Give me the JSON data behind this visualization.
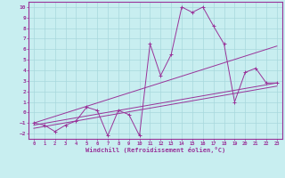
{
  "title": "",
  "xlabel": "Windchill (Refroidissement éolien,°C)",
  "xlim": [
    -0.5,
    23.5
  ],
  "ylim": [
    -2.5,
    10.5
  ],
  "xticks": [
    0,
    1,
    2,
    3,
    4,
    5,
    6,
    7,
    8,
    9,
    10,
    11,
    12,
    13,
    14,
    15,
    16,
    17,
    18,
    19,
    20,
    21,
    22,
    23
  ],
  "yticks": [
    -2,
    -1,
    0,
    1,
    2,
    3,
    4,
    5,
    6,
    7,
    8,
    9,
    10
  ],
  "bg_color": "#c8eef0",
  "grid_color": "#a8d8dc",
  "line_color": "#993399",
  "data_x": [
    0,
    1,
    2,
    3,
    4,
    5,
    6,
    7,
    8,
    9,
    10,
    11,
    12,
    13,
    14,
    15,
    16,
    17,
    18,
    19,
    20,
    21,
    22,
    23
  ],
  "data_y": [
    -1.0,
    -1.2,
    -1.8,
    -1.2,
    -0.8,
    0.5,
    0.2,
    -2.2,
    0.2,
    -0.2,
    -2.2,
    6.5,
    3.5,
    5.5,
    10.0,
    9.5,
    10.0,
    8.2,
    6.5,
    1.0,
    3.8,
    4.2,
    2.8,
    2.8
  ],
  "trend1_x": [
    0,
    23
  ],
  "trend1_y": [
    -1.2,
    2.8
  ],
  "trend2_x": [
    0,
    23
  ],
  "trend2_y": [
    -1.0,
    6.3
  ],
  "trend3_x": [
    0,
    23
  ],
  "trend3_y": [
    -1.5,
    2.5
  ]
}
